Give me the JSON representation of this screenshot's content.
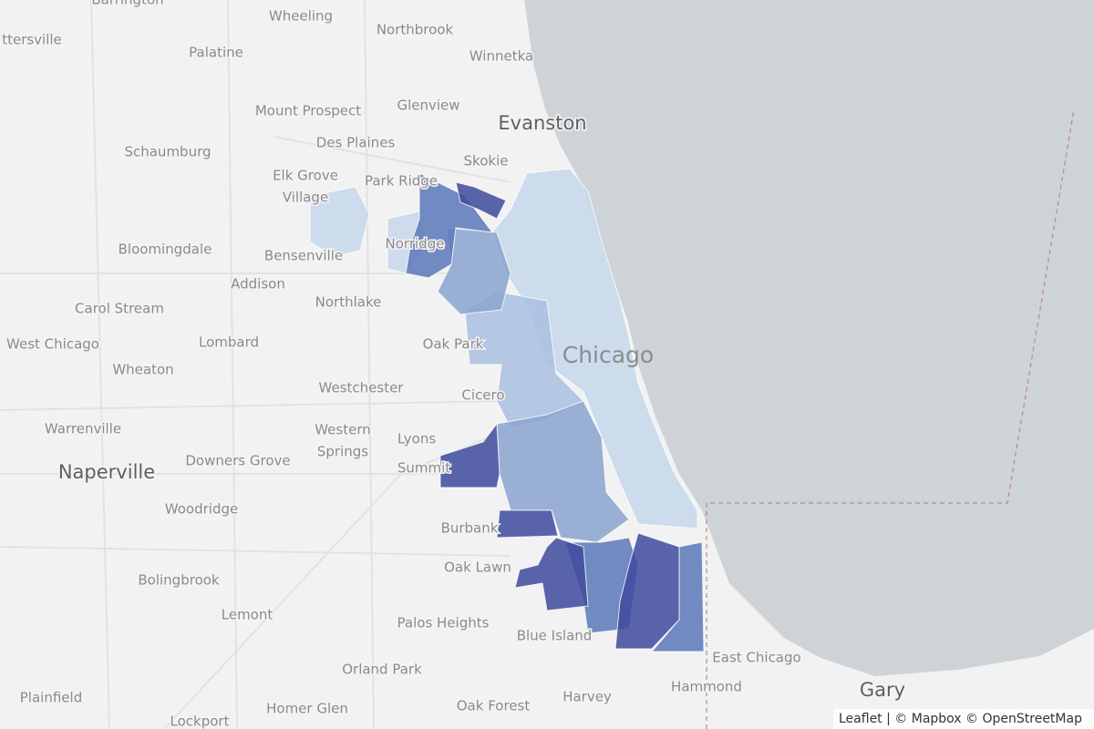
{
  "places": [
    "Barrington",
    "ttersville",
    "Wheeling",
    "Northbrook",
    "Palatine",
    "Winnetka",
    "Mount Prospect",
    "Glenview",
    "Evanston",
    "Schaumburg",
    "Des Plaines",
    "Skokie",
    "Elk Grove",
    "Village",
    "Park Ridge",
    "Norridge",
    "Bloomingdale",
    "Bensenville",
    "Addison",
    "Northlake",
    "Carol Stream",
    "West Chicago",
    "Lombard",
    "Oak Park",
    "Chicago",
    "Wheaton",
    "Westchester",
    "Cicero",
    "Warrenville",
    "Western",
    "Springs",
    "Lyons",
    "Naperville",
    "Downers Grove",
    "Summit",
    "Woodridge",
    "Burbank",
    "Oak Lawn",
    "Bolingbrook",
    "Lemont",
    "Palos Heights",
    "Blue Island",
    "East Chicago",
    "Orland Park",
    "Hammond",
    "Gary",
    "Homer Glen",
    "Oak Forest",
    "Harvey",
    "Plainfield",
    "Lockport"
  ],
  "attribution": "Leaflet | © Mapbox © OpenStreetMap"
}
